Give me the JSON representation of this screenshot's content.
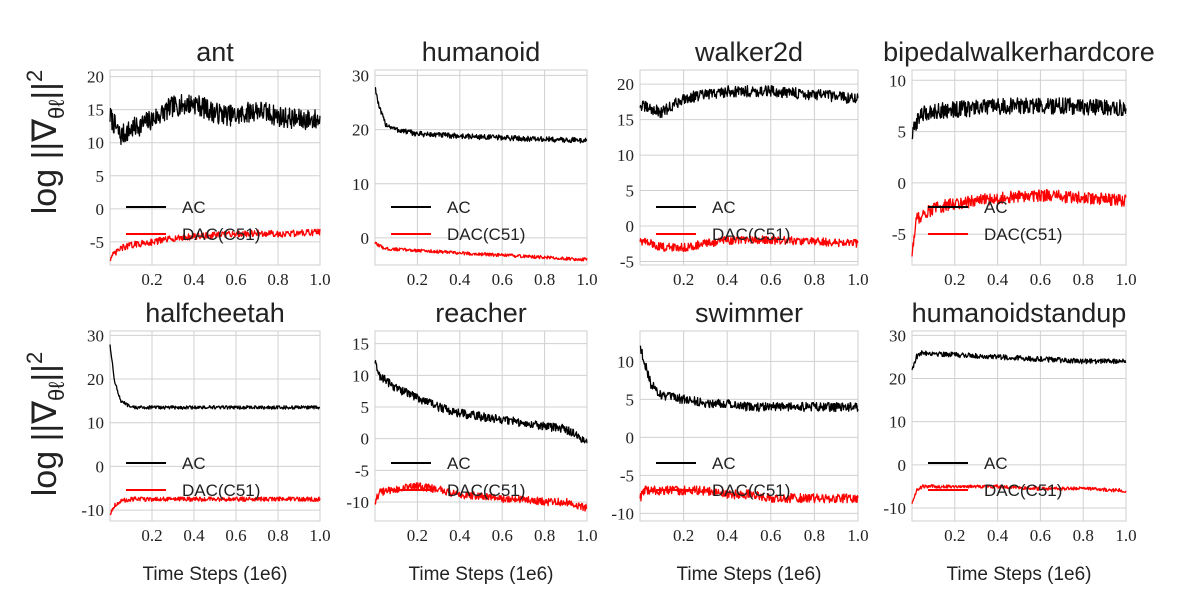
{
  "figure": {
    "ylabel_main": "log ||∇",
    "ylabel_sub": "θℓ",
    "ylabel_end": "||",
    "ylabel_sup": "2",
    "xlabel": "Time Steps (1e6)"
  },
  "colors": {
    "ac": "#000000",
    "dac": "#ff0000",
    "grid": "#d0d0d0",
    "band": "#bbbbbb"
  },
  "chart_data": [
    {
      "type": "line",
      "title": "ant",
      "xlim": [
        0,
        1.0
      ],
      "ylim": [
        -8.5,
        21
      ],
      "xticks": [
        0.2,
        0.4,
        0.6,
        0.8,
        1.0
      ],
      "yticks": [
        -5,
        0,
        5,
        10,
        15,
        20
      ],
      "legend": [
        "AC",
        "DAC(C51)"
      ],
      "xlabel": "",
      "ylabel": "log ||∇θℓ||²",
      "series": [
        {
          "name": "AC",
          "color": "#000000",
          "x": [
            0,
            0.05,
            0.1,
            0.2,
            0.3,
            0.4,
            0.5,
            0.6,
            0.7,
            0.8,
            0.9,
            1.0
          ],
          "y": [
            14,
            11,
            12,
            13.5,
            15.5,
            16,
            14.5,
            14,
            15,
            14,
            13.5,
            13.5
          ],
          "noise": 1.6
        },
        {
          "name": "DAC(C51)",
          "color": "#ff0000",
          "x": [
            0,
            0.05,
            0.1,
            0.2,
            0.3,
            0.4,
            0.5,
            0.6,
            0.7,
            0.8,
            0.9,
            1.0
          ],
          "y": [
            -7.5,
            -6,
            -5.5,
            -5,
            -4.5,
            -4.2,
            -4,
            -3.8,
            -3.7,
            -3.8,
            -3.7,
            -3.5
          ],
          "noise": 0.5
        }
      ]
    },
    {
      "type": "line",
      "title": "humanoid",
      "xlim": [
        0,
        1.0
      ],
      "ylim": [
        -5,
        31
      ],
      "xticks": [
        0.2,
        0.4,
        0.6,
        0.8,
        1.0
      ],
      "yticks": [
        0,
        10,
        20,
        30
      ],
      "legend": [
        "AC",
        "DAC(C51)"
      ],
      "xlabel": "",
      "ylabel": "",
      "series": [
        {
          "name": "AC",
          "color": "#000000",
          "x": [
            0,
            0.02,
            0.05,
            0.1,
            0.2,
            0.4,
            0.6,
            0.8,
            1.0
          ],
          "y": [
            28,
            24,
            21,
            20,
            19.2,
            18.8,
            18.5,
            18.2,
            18
          ],
          "noise": 0.5
        },
        {
          "name": "DAC(C51)",
          "color": "#ff0000",
          "x": [
            0,
            0.05,
            0.2,
            0.4,
            0.6,
            0.8,
            1.0
          ],
          "y": [
            -1,
            -2,
            -2.3,
            -2.8,
            -3.2,
            -3.6,
            -4
          ],
          "noise": 0.3
        }
      ]
    },
    {
      "type": "line",
      "title": "walker2d",
      "xlim": [
        0,
        1.0
      ],
      "ylim": [
        -5.5,
        22
      ],
      "xticks": [
        0.2,
        0.4,
        0.6,
        0.8,
        1.0
      ],
      "yticks": [
        -5,
        0,
        5,
        10,
        15,
        20
      ],
      "legend": [
        "AC",
        "DAC(C51)"
      ],
      "xlabel": "",
      "ylabel": "",
      "series": [
        {
          "name": "AC",
          "color": "#000000",
          "x": [
            0,
            0.1,
            0.2,
            0.3,
            0.4,
            0.6,
            0.8,
            1.0
          ],
          "y": [
            17,
            16,
            18,
            18.5,
            19,
            19,
            18.5,
            18
          ],
          "noise": 0.8
        },
        {
          "name": "DAC(C51)",
          "color": "#ff0000",
          "x": [
            0,
            0.1,
            0.2,
            0.3,
            0.4,
            0.6,
            0.8,
            1.0
          ],
          "y": [
            -2,
            -3,
            -3,
            -2.5,
            -2,
            -2,
            -2.2,
            -2.5
          ],
          "noise": 0.6
        }
      ]
    },
    {
      "type": "line",
      "title": "bipedalwalkerhardcore",
      "xlim": [
        0,
        1.0
      ],
      "ylim": [
        -8,
        11
      ],
      "xticks": [
        0.2,
        0.4,
        0.6,
        0.8,
        1.0
      ],
      "yticks": [
        -5,
        0,
        5,
        10
      ],
      "legend": [
        "AC",
        "DAC(C51)"
      ],
      "xlabel": "",
      "ylabel": "",
      "series": [
        {
          "name": "AC",
          "color": "#000000",
          "x": [
            0,
            0.03,
            0.1,
            0.3,
            0.5,
            0.7,
            1.0
          ],
          "y": [
            4.5,
            6.5,
            7,
            7.3,
            7.5,
            7.5,
            7.3
          ],
          "noise": 0.8
        },
        {
          "name": "DAC(C51)",
          "color": "#ff0000",
          "x": [
            0,
            0.02,
            0.1,
            0.2,
            0.4,
            0.6,
            0.8,
            1.0
          ],
          "y": [
            -7,
            -3.5,
            -2.5,
            -2,
            -1.5,
            -1.2,
            -1.5,
            -1.7
          ],
          "noise": 0.6
        }
      ]
    },
    {
      "type": "line",
      "title": "halfcheetah",
      "xlim": [
        0,
        1.0
      ],
      "ylim": [
        -12.5,
        31
      ],
      "xticks": [
        0.2,
        0.4,
        0.6,
        0.8,
        1.0
      ],
      "yticks": [
        -10,
        0,
        10,
        20,
        30
      ],
      "legend": [
        "AC",
        "DAC(C51)"
      ],
      "xlabel": "Time Steps (1e6)",
      "ylabel": "log ||∇θℓ||²",
      "series": [
        {
          "name": "AC",
          "color": "#000000",
          "x": [
            0,
            0.02,
            0.05,
            0.1,
            0.2,
            0.5,
            1.0
          ],
          "y": [
            28,
            20,
            15,
            13.5,
            13.5,
            13.5,
            13.5
          ],
          "noise": 0.4
        },
        {
          "name": "DAC(C51)",
          "color": "#ff0000",
          "x": [
            0,
            0.02,
            0.05,
            0.1,
            0.3,
            0.6,
            1.0
          ],
          "y": [
            -11,
            -9,
            -8,
            -7.5,
            -7.5,
            -7.5,
            -7.5
          ],
          "noise": 0.5
        }
      ]
    },
    {
      "type": "line",
      "title": "reacher",
      "xlim": [
        0,
        1.0
      ],
      "ylim": [
        -13,
        17
      ],
      "xticks": [
        0.2,
        0.4,
        0.6,
        0.8,
        1.0
      ],
      "yticks": [
        -10,
        -5,
        0,
        5,
        10,
        15
      ],
      "legend": [
        "AC",
        "DAC(C51)"
      ],
      "xlabel": "Time Steps (1e6)",
      "ylabel": "",
      "series": [
        {
          "name": "AC",
          "color": "#000000",
          "x": [
            0,
            0.02,
            0.1,
            0.2,
            0.3,
            0.4,
            0.5,
            0.6,
            0.7,
            0.8,
            0.9,
            1.0
          ],
          "y": [
            12,
            10,
            8,
            6.5,
            5,
            4,
            3.5,
            3,
            2.5,
            2,
            1.5,
            -0.5
          ],
          "noise": 0.7
        },
        {
          "name": "DAC(C51)",
          "color": "#ff0000",
          "x": [
            0,
            0.02,
            0.1,
            0.2,
            0.3,
            0.4,
            0.5,
            0.6,
            0.7,
            0.8,
            0.9,
            1.0
          ],
          "y": [
            -10,
            -8.5,
            -8,
            -7.5,
            -8,
            -9,
            -9,
            -9.5,
            -9.5,
            -10,
            -10,
            -11
          ],
          "noise": 0.6
        }
      ]
    },
    {
      "type": "line",
      "title": "swimmer",
      "xlim": [
        0,
        1.0
      ],
      "ylim": [
        -11,
        14
      ],
      "xticks": [
        0.2,
        0.4,
        0.6,
        0.8,
        1.0
      ],
      "yticks": [
        -10,
        -5,
        0,
        5,
        10
      ],
      "legend": [
        "AC",
        "DAC(C51)"
      ],
      "xlabel": "Time Steps (1e6)",
      "ylabel": "",
      "series": [
        {
          "name": "AC",
          "color": "#000000",
          "x": [
            0,
            0.02,
            0.05,
            0.1,
            0.2,
            0.3,
            0.4,
            0.5,
            0.6,
            0.8,
            1.0
          ],
          "y": [
            12,
            10,
            7,
            5.5,
            5,
            4.5,
            4.5,
            4,
            4,
            4,
            4
          ],
          "noise": 0.6
        },
        {
          "name": "DAC(C51)",
          "color": "#ff0000",
          "x": [
            0,
            0.02,
            0.1,
            0.2,
            0.3,
            0.4,
            0.5,
            0.6,
            0.8,
            1.0
          ],
          "y": [
            -8,
            -7,
            -7,
            -7,
            -7,
            -7.5,
            -7.5,
            -8,
            -8,
            -8
          ],
          "noise": 0.6
        }
      ]
    },
    {
      "type": "line",
      "title": "humanoidstandup",
      "xlim": [
        0,
        1.0
      ],
      "ylim": [
        -13,
        31
      ],
      "xticks": [
        0.2,
        0.4,
        0.6,
        0.8,
        1.0
      ],
      "yticks": [
        -10,
        0,
        10,
        20,
        30
      ],
      "legend": [
        "AC",
        "DAC(C51)"
      ],
      "xlabel": "Time Steps (1e6)",
      "ylabel": "",
      "series": [
        {
          "name": "AC",
          "color": "#000000",
          "x": [
            0,
            0.02,
            0.05,
            0.2,
            0.4,
            0.6,
            0.8,
            1.0
          ],
          "y": [
            22,
            25,
            26,
            25.5,
            25,
            24.5,
            24,
            24
          ],
          "noise": 0.6
        },
        {
          "name": "DAC(C51)",
          "color": "#ff0000",
          "x": [
            0,
            0.02,
            0.05,
            0.2,
            0.4,
            0.6,
            0.8,
            1.0
          ],
          "y": [
            -9,
            -6,
            -5,
            -5,
            -5,
            -5.5,
            -5.5,
            -6
          ],
          "noise": 0.4
        }
      ]
    }
  ]
}
